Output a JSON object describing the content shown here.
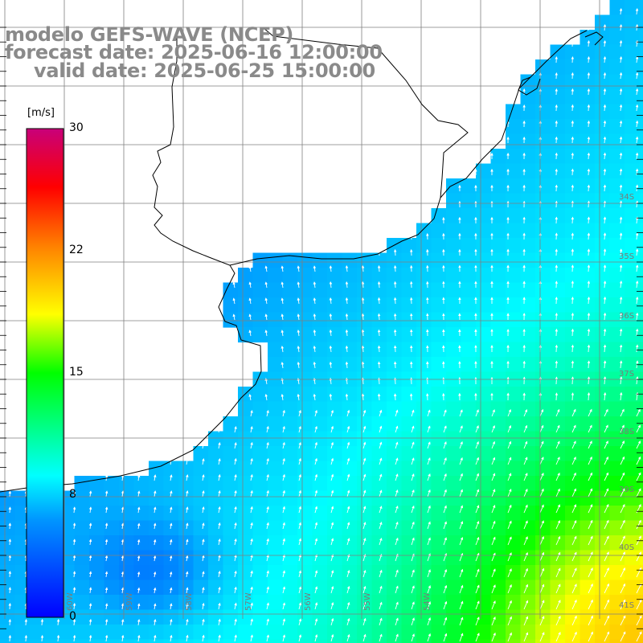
{
  "header": {
    "line1": "modelo GEFS-WAVE (NCEP)",
    "line2": "forecast date: 2025-06-16 12:00:00",
    "line3": "valid date: 2025-06-25 15:00:00"
  },
  "colorbar": {
    "unit": "[m/s]",
    "ticks": [
      "30",
      "22",
      "15",
      "8",
      "0"
    ],
    "tick_values": [
      30,
      22,
      15,
      8,
      0
    ],
    "min": 0,
    "max": 30,
    "stops": [
      "#0000ff",
      "#0096ff",
      "#00ffff",
      "#00ff00",
      "#ffff00",
      "#ff8000",
      "#ff0000",
      "#c8007a"
    ]
  },
  "map": {
    "lon_labels": [
      "60W",
      "59W",
      "58W",
      "57W",
      "56W",
      "55W",
      "54W"
    ],
    "lat_labels": [
      "34S",
      "35S",
      "36S",
      "37S",
      "38S",
      "39S",
      "40S",
      "41S"
    ],
    "land_color": "#ffffff",
    "grid_color": "#7f7f7f",
    "coast_color": "#000000"
  }
}
